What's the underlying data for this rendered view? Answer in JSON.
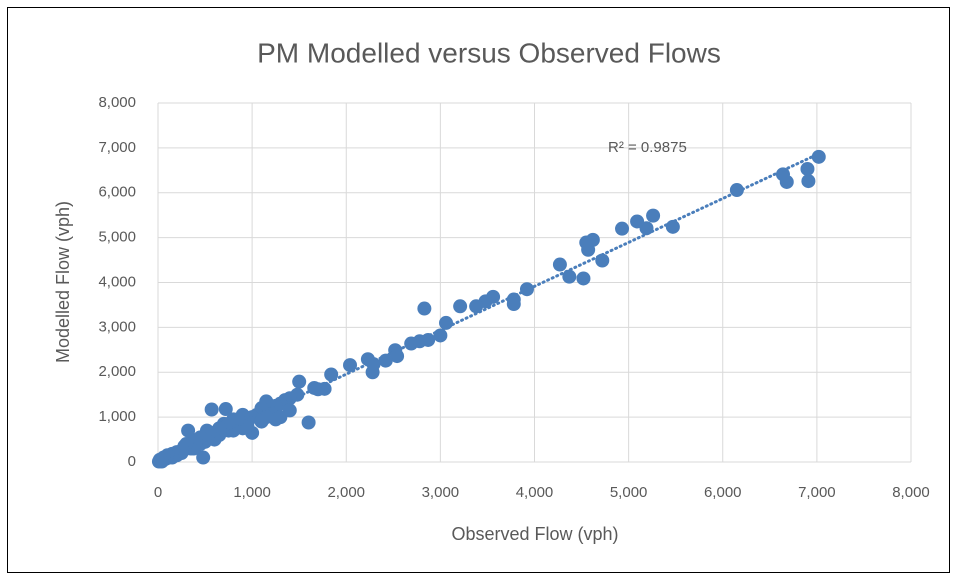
{
  "chart_data": {
    "type": "scatter",
    "title": "PM Modelled versus Observed Flows",
    "x_label": "Observed Flow (vph)",
    "y_label": "Modelled Flow (vph)",
    "annotation": "R² = 0.9875",
    "color": "#4a7ebb",
    "grid": true,
    "xlim": [
      0,
      8000
    ],
    "ylim": [
      0,
      8000
    ],
    "xticks": [
      0,
      {
        "value": 1000,
        "label": "1,000"
      },
      {
        "value": 2000,
        "label": "2,000"
      },
      {
        "value": 3000,
        "label": "3,000"
      },
      {
        "value": 4000,
        "label": "4,000"
      },
      {
        "value": 5000,
        "label": "5,000"
      },
      {
        "value": 6000,
        "label": "6,000"
      },
      {
        "value": 7000,
        "label": "7,000"
      },
      {
        "value": 8000,
        "label": "8,000"
      }
    ],
    "yticks": [
      0,
      {
        "value": 1000,
        "label": "1,000"
      },
      {
        "value": 2000,
        "label": "2,000"
      },
      {
        "value": 3000,
        "label": "3,000"
      },
      {
        "value": 4000,
        "label": "4,000"
      },
      {
        "value": 5000,
        "label": "5,000"
      },
      {
        "value": 6000,
        "label": "6,000"
      },
      {
        "value": 7000,
        "label": "7,000"
      },
      {
        "value": 8000,
        "label": "8,000"
      }
    ],
    "trendline": {
      "x": [
        0,
        7000
      ],
      "y": [
        0,
        6850
      ]
    },
    "x": [
      7020,
      6900,
      6910,
      6680,
      6640,
      6150,
      5190,
      5260,
      5090,
      4930,
      5470,
      4620,
      4550,
      4570,
      4720,
      4270,
      4370,
      4520,
      3920,
      3780,
      3780,
      3560,
      3480,
      3380,
      3210,
      3060,
      3000,
      2830,
      2870,
      2780,
      2690,
      2520,
      2540,
      2420,
      2230,
      2290,
      2280,
      2040,
      1840,
      1770,
      1700,
      1660,
      1500,
      1600,
      1480,
      1400,
      1350,
      1300,
      1250,
      1200,
      1150,
      1100,
      1050,
      1000,
      1000,
      950,
      900,
      850,
      800,
      750,
      720,
      700,
      680,
      650,
      600,
      570,
      550,
      520,
      500,
      480,
      450,
      420,
      400,
      380,
      350,
      320,
      300,
      280,
      250,
      220,
      200,
      180,
      150,
      130,
      110,
      90,
      70,
      50,
      30,
      20,
      10,
      1300,
      1400,
      1250,
      1100,
      1150,
      900,
      950,
      850,
      800,
      750,
      650,
      600,
      550,
      450,
      400,
      350,
      300,
      250,
      200,
      150,
      100,
      60,
      40
    ],
    "values": [
      6800,
      6530,
      6260,
      6240,
      6410,
      6060,
      5210,
      5490,
      5360,
      5200,
      5240,
      4950,
      4890,
      4730,
      4490,
      4400,
      4130,
      4090,
      3850,
      3620,
      3520,
      3680,
      3580,
      3470,
      3470,
      3100,
      2820,
      3420,
      2720,
      2690,
      2640,
      2490,
      2360,
      2260,
      2290,
      2180,
      2000,
      2160,
      1950,
      1630,
      1620,
      1650,
      1790,
      880,
      1500,
      1420,
      1380,
      1300,
      1250,
      1100,
      1350,
      1200,
      1050,
      1000,
      650,
      900,
      1050,
      800,
      950,
      700,
      1180,
      850,
      750,
      600,
      650,
      1170,
      550,
      700,
      450,
      100,
      400,
      500,
      350,
      300,
      420,
      700,
      300,
      350,
      250,
      200,
      220,
      150,
      180,
      120,
      100,
      80,
      60,
      40,
      20,
      50,
      10,
      1000,
      1150,
      950,
      900,
      1000,
      750,
      800,
      950,
      700,
      850,
      750,
      500,
      650,
      550,
      450,
      300,
      400,
      200,
      150,
      100,
      150,
      100,
      10
    ]
  }
}
